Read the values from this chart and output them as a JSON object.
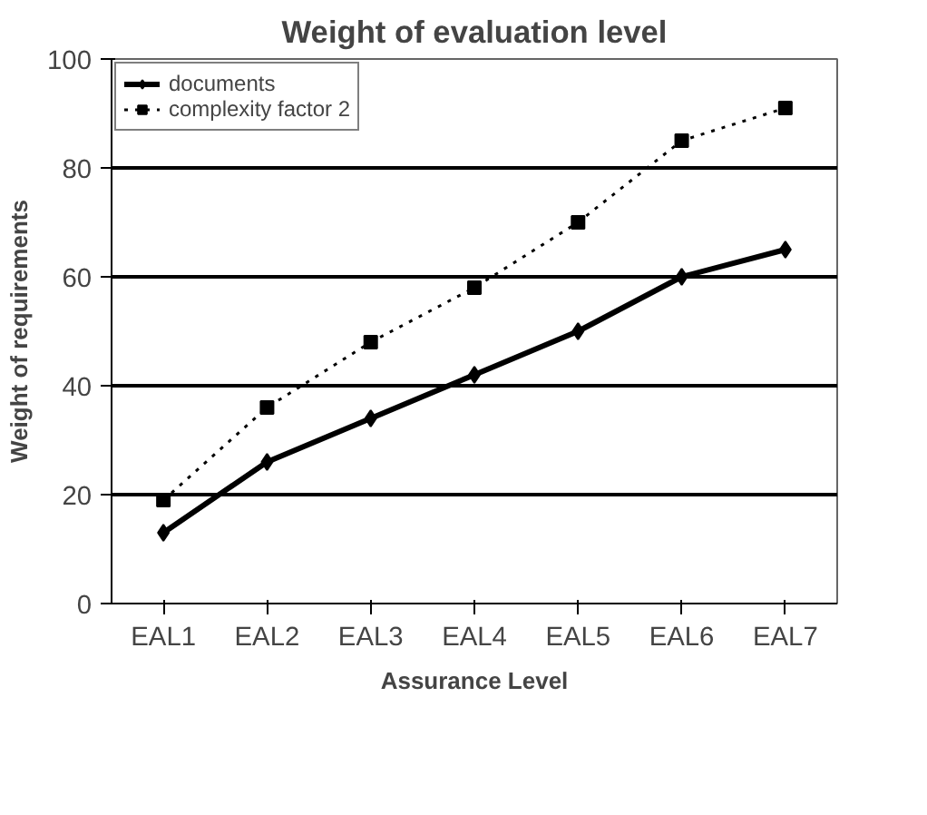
{
  "chart_data": {
    "type": "line",
    "title": "Weight of evaluation level",
    "xlabel": "Assurance Level",
    "ylabel": "Weight of requirements",
    "categories": [
      "EAL1",
      "EAL2",
      "EAL3",
      "EAL4",
      "EAL5",
      "EAL6",
      "EAL7"
    ],
    "series": [
      {
        "name": "documents",
        "color": "#000000",
        "values": [
          13,
          26,
          34,
          42,
          50,
          60,
          65
        ],
        "marker": "diamond",
        "line_style": "solid"
      },
      {
        "name": "complexity factor 2",
        "color": "#000000",
        "values": [
          19,
          36,
          48,
          58,
          70,
          85,
          91
        ],
        "marker": "square",
        "line_style": "dotted"
      }
    ],
    "ylim": [
      0,
      100
    ],
    "yticks": [
      0,
      20,
      40,
      60,
      80,
      100
    ],
    "grid": "y",
    "legend": "top left"
  }
}
